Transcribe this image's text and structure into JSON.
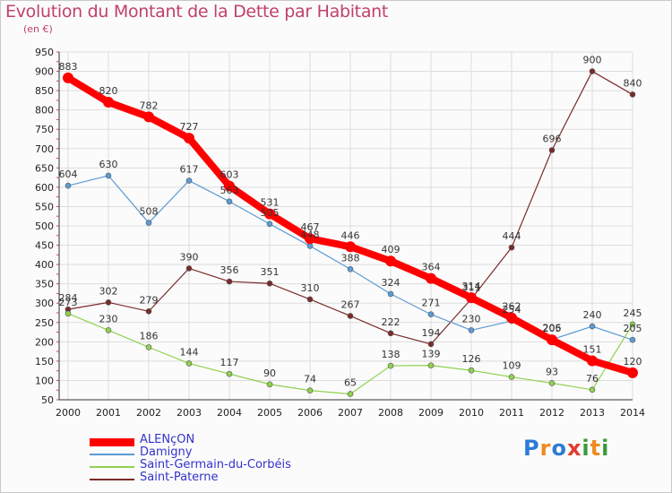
{
  "header": {
    "title": "Evolution du Montant de la Dette par Habitant",
    "unit": "(en €)"
  },
  "logo": {
    "text": "Proxiti"
  },
  "colors": {
    "title": "#c0406e",
    "legend_text": "#3333cc",
    "grid": "#dddddd"
  },
  "chart_data": {
    "type": "line",
    "title": "Evolution du Montant de la Dette par Habitant",
    "ylabel": "(en €)",
    "xlabel": "",
    "ylim": [
      50,
      950
    ],
    "yticks": [
      50,
      100,
      150,
      200,
      250,
      300,
      350,
      400,
      450,
      500,
      550,
      600,
      650,
      700,
      750,
      800,
      850,
      900,
      950
    ],
    "grid": true,
    "legend_position": "bottom-left",
    "x": [
      "2000",
      "2001",
      "2002",
      "2003",
      "2004",
      "2005",
      "2006",
      "2007",
      "2008",
      "2009",
      "2010",
      "2011",
      "2012",
      "2013",
      "2014"
    ],
    "series": [
      {
        "name": "ALENçON",
        "color": "#ff0000",
        "values": [
          883,
          820,
          782,
          727,
          603,
          531,
          467,
          446,
          409,
          364,
          314,
          262,
          205,
          151,
          120
        ]
      },
      {
        "name": "Damigny",
        "color": "#5b9bd5",
        "values": [
          604,
          630,
          508,
          617,
          563,
          505,
          448,
          388,
          324,
          271,
          230,
          254,
          206,
          240,
          205
        ]
      },
      {
        "name": "Saint-Germain-du-Corbéis",
        "color": "#8fd14f",
        "values": [
          273,
          230,
          186,
          144,
          117,
          90,
          74,
          65,
          138,
          139,
          126,
          109,
          93,
          76,
          245
        ]
      },
      {
        "name": "Saint-Paterne",
        "color": "#7b2b2b",
        "values": [
          284,
          302,
          279,
          390,
          356,
          351,
          310,
          267,
          222,
          194,
          311,
          444,
          696,
          900,
          840
        ]
      }
    ]
  }
}
